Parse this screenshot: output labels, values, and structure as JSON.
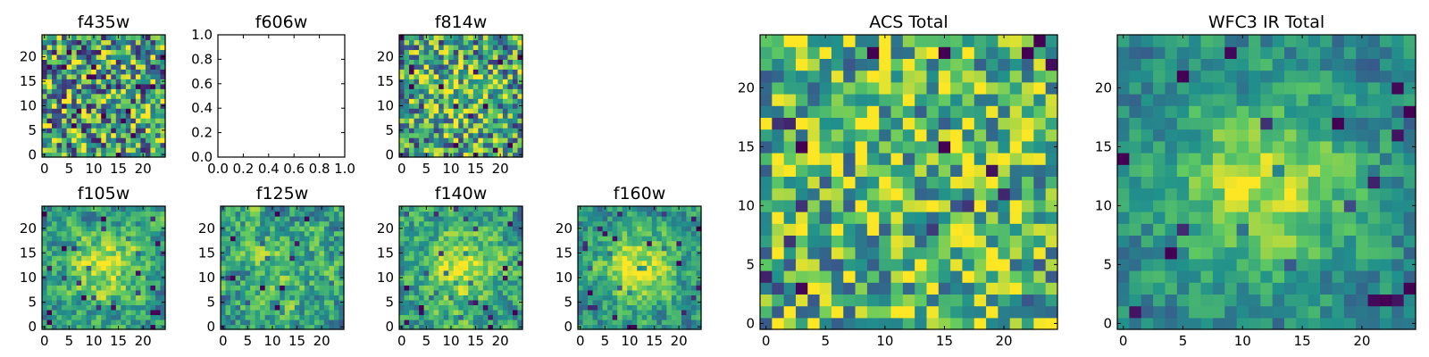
{
  "colors": {
    "viridis": [
      "#440154",
      "#3b528b",
      "#21918c",
      "#5ec962",
      "#fde725"
    ],
    "axes_edge": "#000000",
    "background": "#ffffff"
  },
  "chart_data": [
    {
      "type": "heatmap",
      "title": "f435w",
      "colormap": "viridis",
      "grid": false,
      "x_range": [
        -0.5,
        24.5
      ],
      "y_range": [
        -0.5,
        24.5
      ],
      "x_ticks": [
        0,
        5,
        10,
        15,
        20
      ],
      "y_ticks": [
        0,
        5,
        10,
        15,
        20
      ],
      "x_tick_labels": [
        "0",
        "5",
        "10",
        "15",
        "20"
      ],
      "y_tick_labels": [
        "0",
        "5",
        "10",
        "15",
        "20"
      ],
      "texture": "uniform noise, no central concentration",
      "dimensions": [
        25,
        25
      ]
    },
    {
      "type": "heatmap",
      "title": "f606w",
      "empty": true,
      "grid": false,
      "x_range": [
        0.0,
        1.0
      ],
      "y_range": [
        0.0,
        1.0
      ],
      "x_ticks": [
        0.0,
        0.2,
        0.4,
        0.6,
        0.8,
        1.0
      ],
      "y_ticks": [
        0.0,
        0.2,
        0.4,
        0.6,
        0.8,
        1.0
      ],
      "x_tick_labels": [
        "0.0",
        "0.2",
        "0.4",
        "0.6",
        "0.8",
        "1.0"
      ],
      "y_tick_labels": [
        "0.0",
        "0.2",
        "0.4",
        "0.6",
        "0.8",
        "1.0"
      ]
    },
    {
      "type": "heatmap",
      "title": "f814w",
      "colormap": "viridis",
      "grid": false,
      "x_range": [
        -0.5,
        24.5
      ],
      "y_range": [
        -0.5,
        24.5
      ],
      "x_ticks": [
        0,
        5,
        10,
        15,
        20
      ],
      "y_ticks": [
        0,
        5,
        10,
        15,
        20
      ],
      "x_tick_labels": [
        "0",
        "5",
        "10",
        "15",
        "20"
      ],
      "y_tick_labels": [
        "0",
        "5",
        "10",
        "15",
        "20"
      ],
      "texture": "noise with slight brightening near center",
      "dimensions": [
        25,
        25
      ]
    },
    {
      "type": "heatmap",
      "title": "f105w",
      "colormap": "viridis",
      "grid": false,
      "x_range": [
        -0.5,
        24.5
      ],
      "y_range": [
        -0.5,
        24.5
      ],
      "x_ticks": [
        0,
        5,
        10,
        15,
        20
      ],
      "y_ticks": [
        0,
        5,
        10,
        15,
        20
      ],
      "x_tick_labels": [
        "0",
        "5",
        "10",
        "15",
        "20"
      ],
      "y_tick_labels": [
        "0",
        "5",
        "10",
        "15",
        "20"
      ],
      "texture": "bright central source with noise",
      "dimensions": [
        25,
        25
      ]
    },
    {
      "type": "heatmap",
      "title": "f125w",
      "colormap": "viridis",
      "grid": false,
      "x_range": [
        -0.5,
        24.5
      ],
      "y_range": [
        -0.5,
        24.5
      ],
      "x_ticks": [
        0,
        5,
        10,
        15,
        20
      ],
      "y_ticks": [
        0,
        5,
        10,
        15,
        20
      ],
      "x_tick_labels": [
        "0",
        "5",
        "10",
        "15",
        "20"
      ],
      "y_tick_labels": [
        "0",
        "5",
        "10",
        "15",
        "20"
      ],
      "texture": "noise with faint central source",
      "dimensions": [
        25,
        25
      ]
    },
    {
      "type": "heatmap",
      "title": "f140w",
      "colormap": "viridis",
      "grid": false,
      "x_range": [
        -0.5,
        24.5
      ],
      "y_range": [
        -0.5,
        24.5
      ],
      "x_ticks": [
        0,
        5,
        10,
        15,
        20
      ],
      "y_ticks": [
        0,
        5,
        10,
        15,
        20
      ],
      "x_tick_labels": [
        "0",
        "5",
        "10",
        "15",
        "20"
      ],
      "y_tick_labels": [
        "0",
        "5",
        "10",
        "15",
        "20"
      ],
      "texture": "bright central source with noise",
      "dimensions": [
        25,
        25
      ]
    },
    {
      "type": "heatmap",
      "title": "f160w",
      "colormap": "viridis",
      "grid": false,
      "x_range": [
        -0.5,
        24.5
      ],
      "y_range": [
        -0.5,
        24.5
      ],
      "x_ticks": [
        0,
        5,
        10,
        15,
        20
      ],
      "y_ticks": [
        0,
        5,
        10,
        15,
        20
      ],
      "x_tick_labels": [
        "0",
        "5",
        "10",
        "15",
        "20"
      ],
      "y_tick_labels": [
        "0",
        "5",
        "10",
        "15",
        "20"
      ],
      "texture": "bright central source, smoother",
      "dimensions": [
        25,
        25
      ]
    },
    {
      "type": "heatmap",
      "title": "ACS Total",
      "colormap": "viridis",
      "grid": false,
      "x_range": [
        -0.5,
        24.5
      ],
      "y_range": [
        -0.5,
        24.5
      ],
      "x_ticks": [
        0,
        5,
        10,
        15,
        20
      ],
      "y_ticks": [
        0,
        5,
        10,
        15,
        20
      ],
      "x_tick_labels": [
        "0",
        "5",
        "10",
        "15",
        "20"
      ],
      "y_tick_labels": [
        "0",
        "5",
        "10",
        "15",
        "20"
      ],
      "texture": "noise, mostly green-yellow with scattered dark pixels",
      "dimensions": [
        25,
        25
      ]
    },
    {
      "type": "heatmap",
      "title": "WFC3 IR Total",
      "colormap": "viridis",
      "grid": false,
      "x_range": [
        -0.5,
        24.5
      ],
      "y_range": [
        -0.5,
        24.5
      ],
      "x_ticks": [
        0,
        5,
        10,
        15,
        20
      ],
      "y_ticks": [
        0,
        5,
        10,
        15,
        20
      ],
      "x_tick_labels": [
        "0",
        "5",
        "10",
        "15",
        "20"
      ],
      "y_tick_labels": [
        "0",
        "5",
        "10",
        "15",
        "20"
      ],
      "texture": "bright yellow source near center (x~12, y~12), darker edges",
      "dimensions": [
        25,
        25
      ]
    }
  ]
}
